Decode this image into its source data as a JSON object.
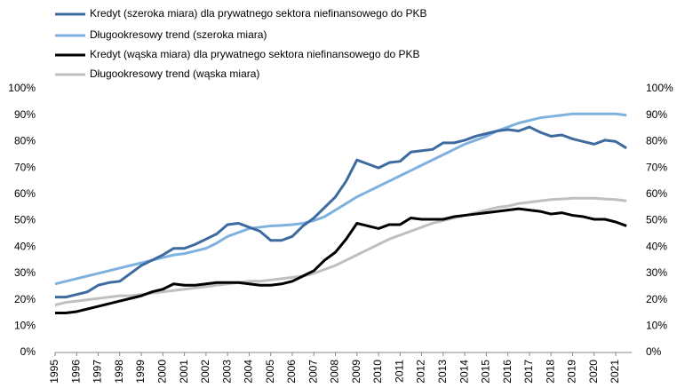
{
  "chart_data": {
    "type": "line",
    "x": [
      1995,
      1995.5,
      1996,
      1996.5,
      1997,
      1997.5,
      1998,
      1998.5,
      1999,
      1999.5,
      2000,
      2000.5,
      2001,
      2001.5,
      2002,
      2002.5,
      2003,
      2003.5,
      2004,
      2004.5,
      2005,
      2005.5,
      2006,
      2006.5,
      2007,
      2007.5,
      2008,
      2008.5,
      2009,
      2009.5,
      2010,
      2010.5,
      2011,
      2011.5,
      2012,
      2012.5,
      2013,
      2013.5,
      2014,
      2014.5,
      2015,
      2015.5,
      2016,
      2016.5,
      2017,
      2017.5,
      2018,
      2018.5,
      2019,
      2019.5,
      2020,
      2020.5,
      2021,
      2021.5
    ],
    "series": [
      {
        "name": "Kredyt (szeroka miara) dla prywatnego sektora niefinansowego do PKB",
        "color": "#3e6b9f",
        "values": [
          21,
          21,
          22,
          23,
          25.5,
          26.5,
          27,
          30,
          33,
          35,
          37,
          39.5,
          39.5,
          41,
          43,
          45,
          48.5,
          49,
          47.5,
          46,
          42.5,
          42.5,
          44,
          48,
          51,
          55,
          59,
          65,
          73,
          71.5,
          70,
          72,
          72.5,
          76,
          76.5,
          77,
          79.5,
          79.5,
          80.5,
          82,
          83,
          84,
          84.5,
          84,
          85.5,
          83.5,
          82,
          82.5,
          81,
          80,
          79,
          80.5,
          80,
          77.5
        ]
      },
      {
        "name": "Długookresowy trend (szeroka miara)",
        "color": "#7fb1df",
        "values": [
          26,
          27,
          28,
          29,
          30,
          31,
          32,
          33,
          34,
          35,
          36,
          37,
          37.5,
          38.5,
          39.5,
          41.5,
          44,
          45.5,
          47,
          47.5,
          48,
          48.2,
          48.5,
          49,
          50,
          51.5,
          54,
          56.5,
          59,
          61,
          63,
          65,
          67,
          69,
          71,
          73,
          75,
          77,
          79,
          80.5,
          82,
          84,
          85.5,
          87,
          88,
          89,
          89.5,
          90,
          90.5,
          90.5,
          90.5,
          90.5,
          90.5,
          90
        ]
      },
      {
        "name": "Kredyt (wąska miara) dla prywatnego sektora niefinansowego do PKB",
        "color": "#000000",
        "values": [
          15,
          15,
          15.5,
          16.5,
          17.5,
          18.5,
          19.5,
          20.5,
          21.5,
          23,
          24,
          26,
          25.5,
          25.5,
          26,
          26.5,
          26.5,
          26.5,
          26,
          25.5,
          25.5,
          26,
          27,
          29,
          31,
          35,
          38,
          43,
          49,
          48,
          47,
          48.5,
          48.5,
          51,
          50.5,
          50.5,
          50.5,
          51.5,
          52,
          52.5,
          53,
          53.5,
          54,
          54.5,
          54,
          53.5,
          52.5,
          53,
          52,
          51.5,
          50.5,
          50.5,
          49.5,
          48
        ]
      },
      {
        "name": "Długookresowy trend (wąska miara)",
        "color": "#bfbfbf",
        "values": [
          18,
          19,
          19.5,
          20,
          20.5,
          21,
          21.5,
          21.5,
          22,
          22.5,
          23,
          23.5,
          24,
          24.5,
          25,
          25.5,
          26,
          26.5,
          27,
          27,
          27.5,
          28,
          28.5,
          29,
          30,
          31.5,
          33,
          35,
          37,
          39,
          41,
          43,
          44.5,
          46,
          47.5,
          49,
          50,
          51,
          52,
          53,
          54,
          55,
          55.5,
          56.5,
          57,
          57.5,
          58,
          58.2,
          58.5,
          58.5,
          58.5,
          58.2,
          58,
          57.5
        ]
      }
    ],
    "xlim": [
      1995,
      2021.75
    ],
    "xticks": [
      1995,
      1996,
      1997,
      1998,
      1999,
      2000,
      2001,
      2002,
      2003,
      2004,
      2005,
      2006,
      2007,
      2008,
      2009,
      2010,
      2011,
      2012,
      2013,
      2014,
      2015,
      2016,
      2017,
      2018,
      2019,
      2020,
      2021
    ],
    "ylim": [
      0,
      100
    ],
    "yticks": [
      {
        "value": 0,
        "label": "0%"
      },
      {
        "value": 10,
        "label": "10%"
      },
      {
        "value": 20,
        "label": "20%"
      },
      {
        "value": 30,
        "label": "30%"
      },
      {
        "value": 40,
        "label": "40%"
      },
      {
        "value": 50,
        "label": "50%"
      },
      {
        "value": 60,
        "label": "60%"
      },
      {
        "value": 70,
        "label": "70%"
      },
      {
        "value": 80,
        "label": "80%"
      },
      {
        "value": 90,
        "label": "90%"
      },
      {
        "value": 100,
        "label": "100%"
      }
    ],
    "y2lim": [
      0,
      100
    ],
    "y2ticks": [
      {
        "value": 0,
        "label": "0%"
      },
      {
        "value": 10,
        "label": "10%"
      },
      {
        "value": 20,
        "label": "20%"
      },
      {
        "value": 30,
        "label": "30%"
      },
      {
        "value": 40,
        "label": "40%"
      },
      {
        "value": 50,
        "label": "50%"
      },
      {
        "value": 60,
        "label": "60%"
      },
      {
        "value": 70,
        "label": "70%"
      },
      {
        "value": 80,
        "label": "80%"
      },
      {
        "value": 90,
        "label": "90%"
      },
      {
        "value": 100,
        "label": "100%"
      }
    ],
    "legend": "top-left"
  }
}
